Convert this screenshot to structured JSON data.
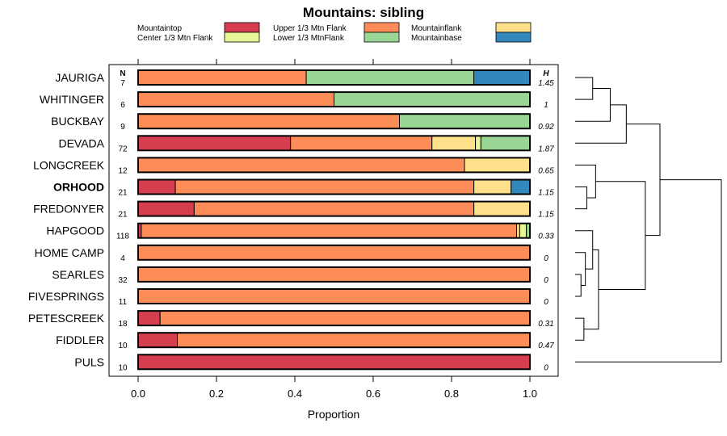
{
  "chart_data": {
    "type": "bar",
    "stacked": true,
    "orientation": "horizontal",
    "title": "Mountains: sibling",
    "xlabel": "Proportion",
    "ylabel": "",
    "xlim": [
      0,
      1
    ],
    "xticks": [
      "0.0",
      "0.2",
      "0.4",
      "0.6",
      "0.8",
      "1.0"
    ],
    "n_header": "N",
    "h_header": "H",
    "categories": [
      "JAURIGA",
      "WHITINGER",
      "BUCKBAY",
      "DEVADA",
      "LONGCREEK",
      "ORHOOD",
      "FREDONYER",
      "HAPGOOD",
      "HOME CAMP",
      "SEARLES",
      "FIVESPRINGS",
      "PETESCREEK",
      "FIDDLER",
      "PULS"
    ],
    "highlight": "ORHOOD",
    "n": [
      "7",
      "6",
      "9",
      "72",
      "12",
      "21",
      "21",
      "118",
      "4",
      "32",
      "11",
      "18",
      "10",
      "10"
    ],
    "h": [
      "1.45",
      "1",
      "0.92",
      "1.87",
      "0.65",
      "1.15",
      "1.15",
      "0.33",
      "0",
      "0",
      "0",
      "0.31",
      "0.47",
      "0"
    ],
    "series": [
      {
        "name": "Mountaintop",
        "color": "#d53e4f",
        "values": [
          0,
          0,
          0,
          0.389,
          0,
          0.095,
          0.143,
          0.008,
          0,
          0,
          0,
          0.056,
          0.1,
          1
        ]
      },
      {
        "name": "Upper 1/3 Mtn Flank",
        "color": "#fc8d59",
        "values": [
          0.429,
          0.5,
          0.667,
          0.361,
          0.833,
          0.762,
          0.714,
          0.958,
          1,
          1,
          1,
          0.944,
          0.9,
          0
        ]
      },
      {
        "name": "Mountainflank",
        "color": "#fee08b",
        "values": [
          0,
          0,
          0,
          0.111,
          0.167,
          0.095,
          0.143,
          0.008,
          0,
          0,
          0,
          0,
          0,
          0
        ]
      },
      {
        "name": "Center 1/3 Mtn Flank",
        "color": "#e6f598",
        "values": [
          0,
          0,
          0,
          0.014,
          0,
          0,
          0,
          0.017,
          0,
          0,
          0,
          0,
          0,
          0
        ]
      },
      {
        "name": "Lower 1/3 MtnFlank",
        "color": "#99d594",
        "values": [
          0.428,
          0.5,
          0.333,
          0.125,
          0,
          0,
          0,
          0.009,
          0,
          0,
          0,
          0,
          0,
          0
        ]
      },
      {
        "name": "Mountainbase",
        "color": "#3288bd",
        "values": [
          0.143,
          0,
          0,
          0,
          0,
          0.048,
          0,
          0,
          0,
          0,
          0,
          0,
          0,
          0
        ]
      }
    ],
    "legend_position": "top",
    "dendrogram": {
      "leaves": [
        "JAURIGA",
        "WHITINGER",
        "BUCKBAY",
        "DEVADA",
        "LONGCREEK",
        "ORHOOD",
        "FREDONYER",
        "HAPGOOD",
        "HOME CAMP",
        "SEARLES",
        "FIVESPRINGS",
        "PETESCREEK",
        "FIDDLER",
        "PULS"
      ],
      "merges": [
        {
          "a": [
            "leaf",
            0
          ],
          "b": [
            "leaf",
            1
          ],
          "height": 0.12
        },
        {
          "a": [
            "node",
            0
          ],
          "b": [
            "leaf",
            2
          ],
          "height": 0.24
        },
        {
          "a": [
            "node",
            1
          ],
          "b": [
            "leaf",
            3
          ],
          "height": 0.35
        },
        {
          "a": [
            "leaf",
            5
          ],
          "b": [
            "leaf",
            6
          ],
          "height": 0.08
        },
        {
          "a": [
            "leaf",
            4
          ],
          "b": [
            "node",
            3
          ],
          "height": 0.14
        },
        {
          "a": [
            "leaf",
            10
          ],
          "b": [
            "leaf",
            9
          ],
          "height": 0.04
        },
        {
          "a": [
            "leaf",
            8
          ],
          "b": [
            "node",
            5
          ],
          "height": 0.07
        },
        {
          "a": [
            "leaf",
            7
          ],
          "b": [
            "node",
            6
          ],
          "height": 0.12
        },
        {
          "a": [
            "leaf",
            11
          ],
          "b": [
            "leaf",
            12
          ],
          "height": 0.06
        },
        {
          "a": [
            "node",
            7
          ],
          "b": [
            "node",
            8
          ],
          "height": 0.16
        },
        {
          "a": [
            "node",
            4
          ],
          "b": [
            "node",
            9
          ],
          "height": 0.48
        },
        {
          "a": [
            "node",
            2
          ],
          "b": [
            "node",
            10
          ],
          "height": 0.58
        },
        {
          "a": [
            "node",
            11
          ],
          "b": [
            "leaf",
            13
          ],
          "height": 1.0
        }
      ]
    }
  }
}
